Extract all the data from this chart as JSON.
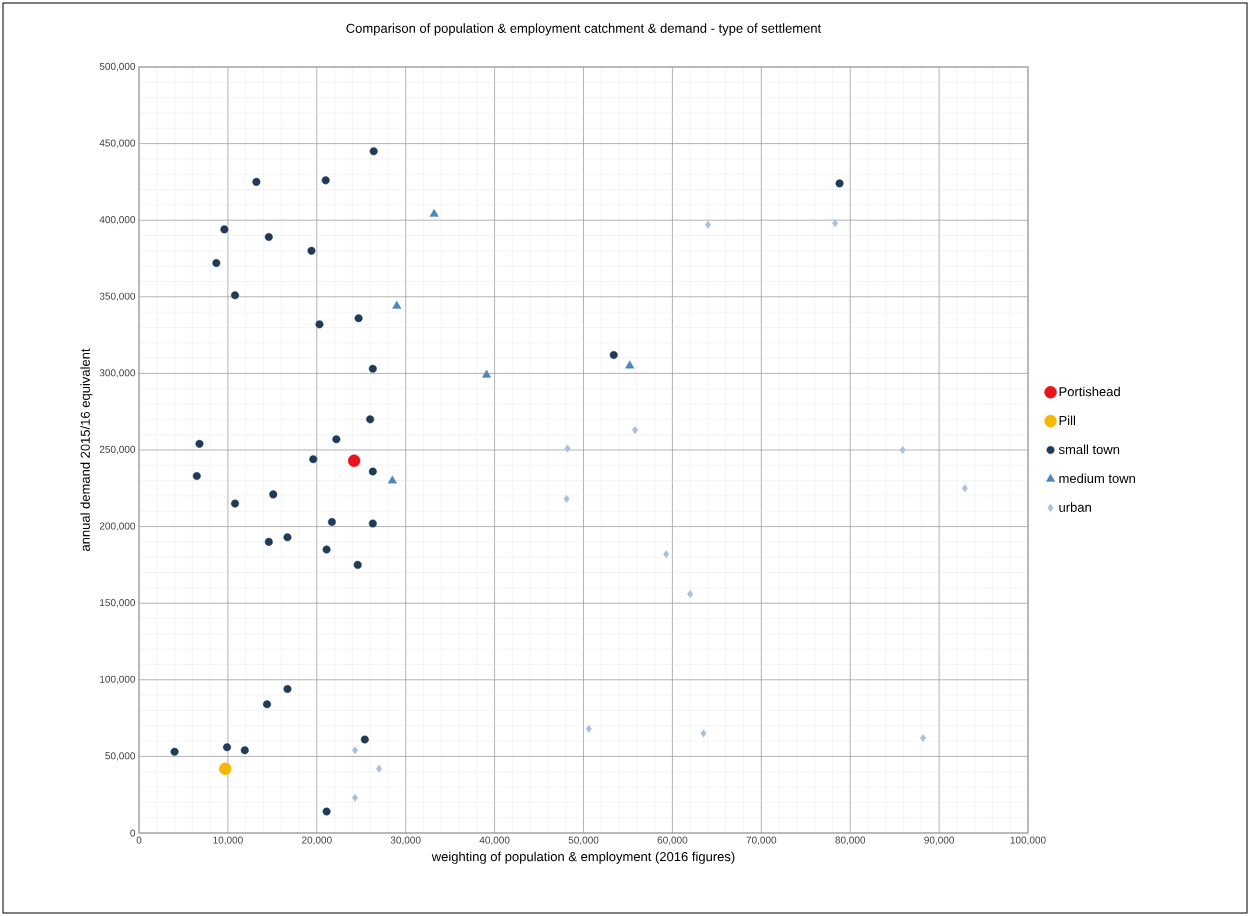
{
  "chart_data": {
    "type": "scatter",
    "title": "Comparison of population & employment catchment & demand - type of settlement",
    "xlabel": "weighting of population & employment (2016 figures)",
    "ylabel": "annual demand 2015/16 equivalent",
    "grid": true,
    "legend": "right",
    "xlim": [
      0,
      100000
    ],
    "ylim": [
      0,
      500000
    ],
    "xticks": [
      0,
      {
        "value": 10000,
        "label": "10,000"
      },
      {
        "value": 20000,
        "label": "20,000"
      },
      {
        "value": 30000,
        "label": "30,000"
      },
      {
        "value": 40000,
        "label": "40,000"
      },
      {
        "value": 50000,
        "label": "50,000"
      },
      {
        "value": 60000,
        "label": "60,000"
      },
      {
        "value": 70000,
        "label": "70,000"
      },
      {
        "value": 80000,
        "label": "80,000"
      },
      {
        "value": 90000,
        "label": "90,000"
      },
      {
        "value": 100000,
        "label": "100,000"
      }
    ],
    "yticks": [
      0,
      {
        "value": 50000,
        "label": "50,000"
      },
      {
        "value": 100000,
        "label": "100,000"
      },
      {
        "value": 150000,
        "label": "150,000"
      },
      {
        "value": 200000,
        "label": "200,000"
      },
      {
        "value": 250000,
        "label": "250,000"
      },
      {
        "value": 300000,
        "label": "300,000"
      },
      {
        "value": 350000,
        "label": "350,000"
      },
      {
        "value": 400000,
        "label": "400,000"
      },
      {
        "value": 450000,
        "label": "450,000"
      },
      {
        "value": 500000,
        "label": "500,000"
      }
    ],
    "series": [
      {
        "name": "Portishead",
        "color": "#e8141c",
        "marker": "circle",
        "x": [
          24200
        ],
        "values": [
          243000
        ]
      },
      {
        "name": "Pill",
        "color": "#f5b800",
        "marker": "circle",
        "x": [
          9700
        ],
        "values": [
          42000
        ]
      },
      {
        "name": "small town",
        "color": "#1f3b57",
        "marker": "circle",
        "x": [
          26400,
          13200,
          21000,
          9600,
          14600,
          19400,
          8700,
          10800,
          24700,
          20300,
          26300,
          26000,
          22200,
          6800,
          19600,
          26300,
          6500,
          15100,
          10800,
          21700,
          26300,
          16700,
          14600,
          21100,
          24600,
          16700,
          14400,
          25400,
          4000,
          9900,
          11900,
          21100,
          78800,
          53400
        ],
        "values": [
          445000,
          425000,
          426000,
          394000,
          389000,
          380000,
          372000,
          351000,
          336000,
          332000,
          303000,
          270000,
          257000,
          254000,
          244000,
          236000,
          233000,
          221000,
          215000,
          203000,
          202000,
          193000,
          190000,
          185000,
          175000,
          94000,
          84000,
          61000,
          53000,
          56000,
          54000,
          14000,
          424000,
          312000
        ]
      },
      {
        "name": "medium town",
        "color": "#4f86bf",
        "marker": "triangle",
        "x": [
          33200,
          29000,
          39100,
          28500,
          55200
        ],
        "values": [
          404000,
          344000,
          299000,
          230000,
          305000
        ]
      },
      {
        "name": "urban",
        "color": "#a9c1dc",
        "marker": "diamond",
        "x": [
          24300,
          27000,
          24300,
          64000,
          78300,
          55800,
          48200,
          48100,
          85900,
          92900,
          59300,
          62000,
          50600,
          63500,
          88200
        ],
        "values": [
          54000,
          42000,
          23000,
          397000,
          398000,
          263000,
          251000,
          218000,
          250000,
          225000,
          182000,
          156000,
          68000,
          65000,
          62000
        ]
      }
    ]
  }
}
